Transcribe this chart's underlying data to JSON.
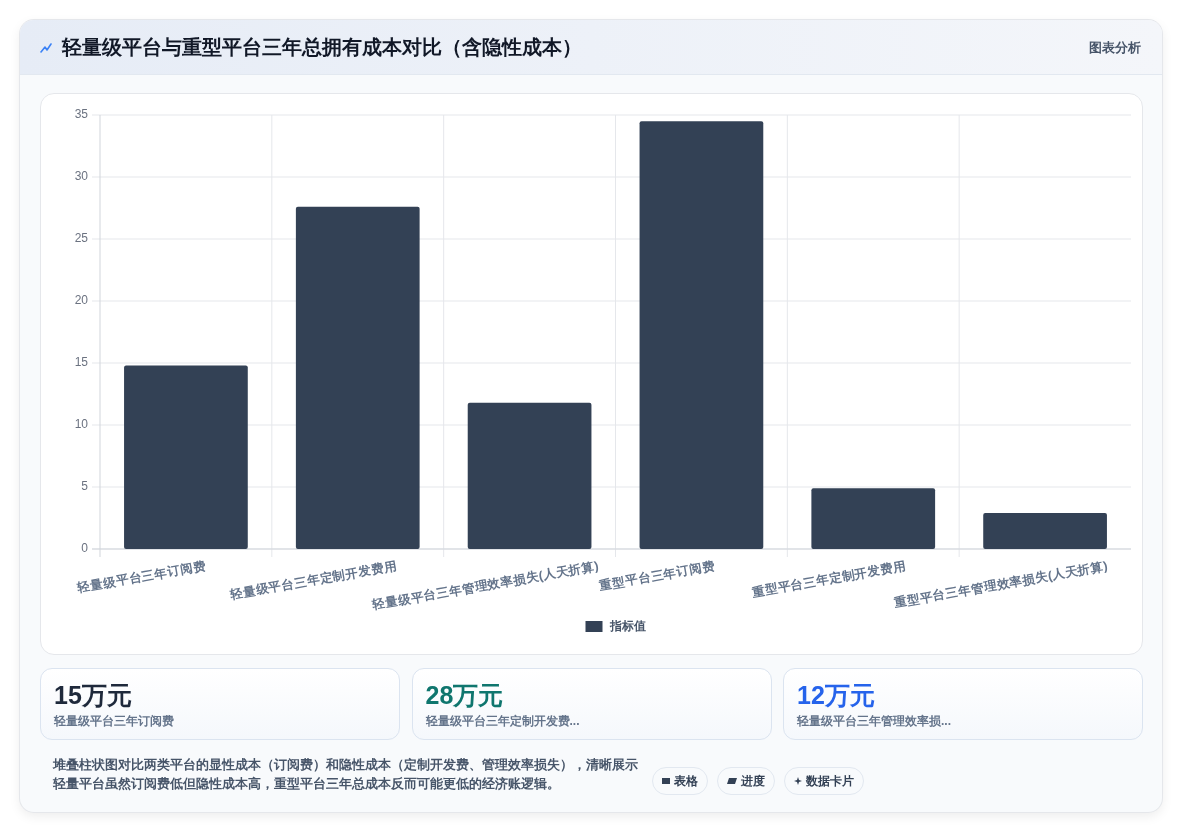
{
  "chart_data": [
    {
      "type": "bar",
      "title": "轻量级平台与重型平台三年总拥有成本对比（含隐性成本）",
      "categories": [
        "轻量级平台三年订阅费",
        "轻量级平台三年定制开发费用",
        "轻量级平台三年管理效率损失(人天折算)",
        "重型平台三年订阅费",
        "重型平台三年定制开发费用",
        "重型平台三年管理效率损失(人天折算)"
      ],
      "series": [
        {
          "name": "指标值",
          "color": "#334155",
          "values": [
            14.8,
            27.6,
            11.8,
            34.5,
            4.9,
            2.9
          ]
        }
      ],
      "ylim": [
        0,
        35
      ],
      "yticks": [
        0,
        5,
        10,
        15,
        20,
        25,
        30,
        35
      ],
      "grid": true,
      "legend": "bottom",
      "annotations": [
        "图表分析",
        "堆叠柱状图对比两类平台的显性成本（订阅费）和隐性成本（定制开发费、管理效率损失），清晰展示轻量平台虽然订阅费低但隐性成本高，重型平台三年总成本反而可能更低的经济账逻辑。",
        "表格",
        "进度",
        "数据卡片"
      ]
    },
    {
      "type": "other",
      "annotations": [
        "15万元",
        "轻量级平台三年订阅费",
        "28万元",
        "轻量级平台三年定制开发费...",
        "12万元",
        "轻量级平台三年管理效率损..."
      ]
    }
  ]
}
